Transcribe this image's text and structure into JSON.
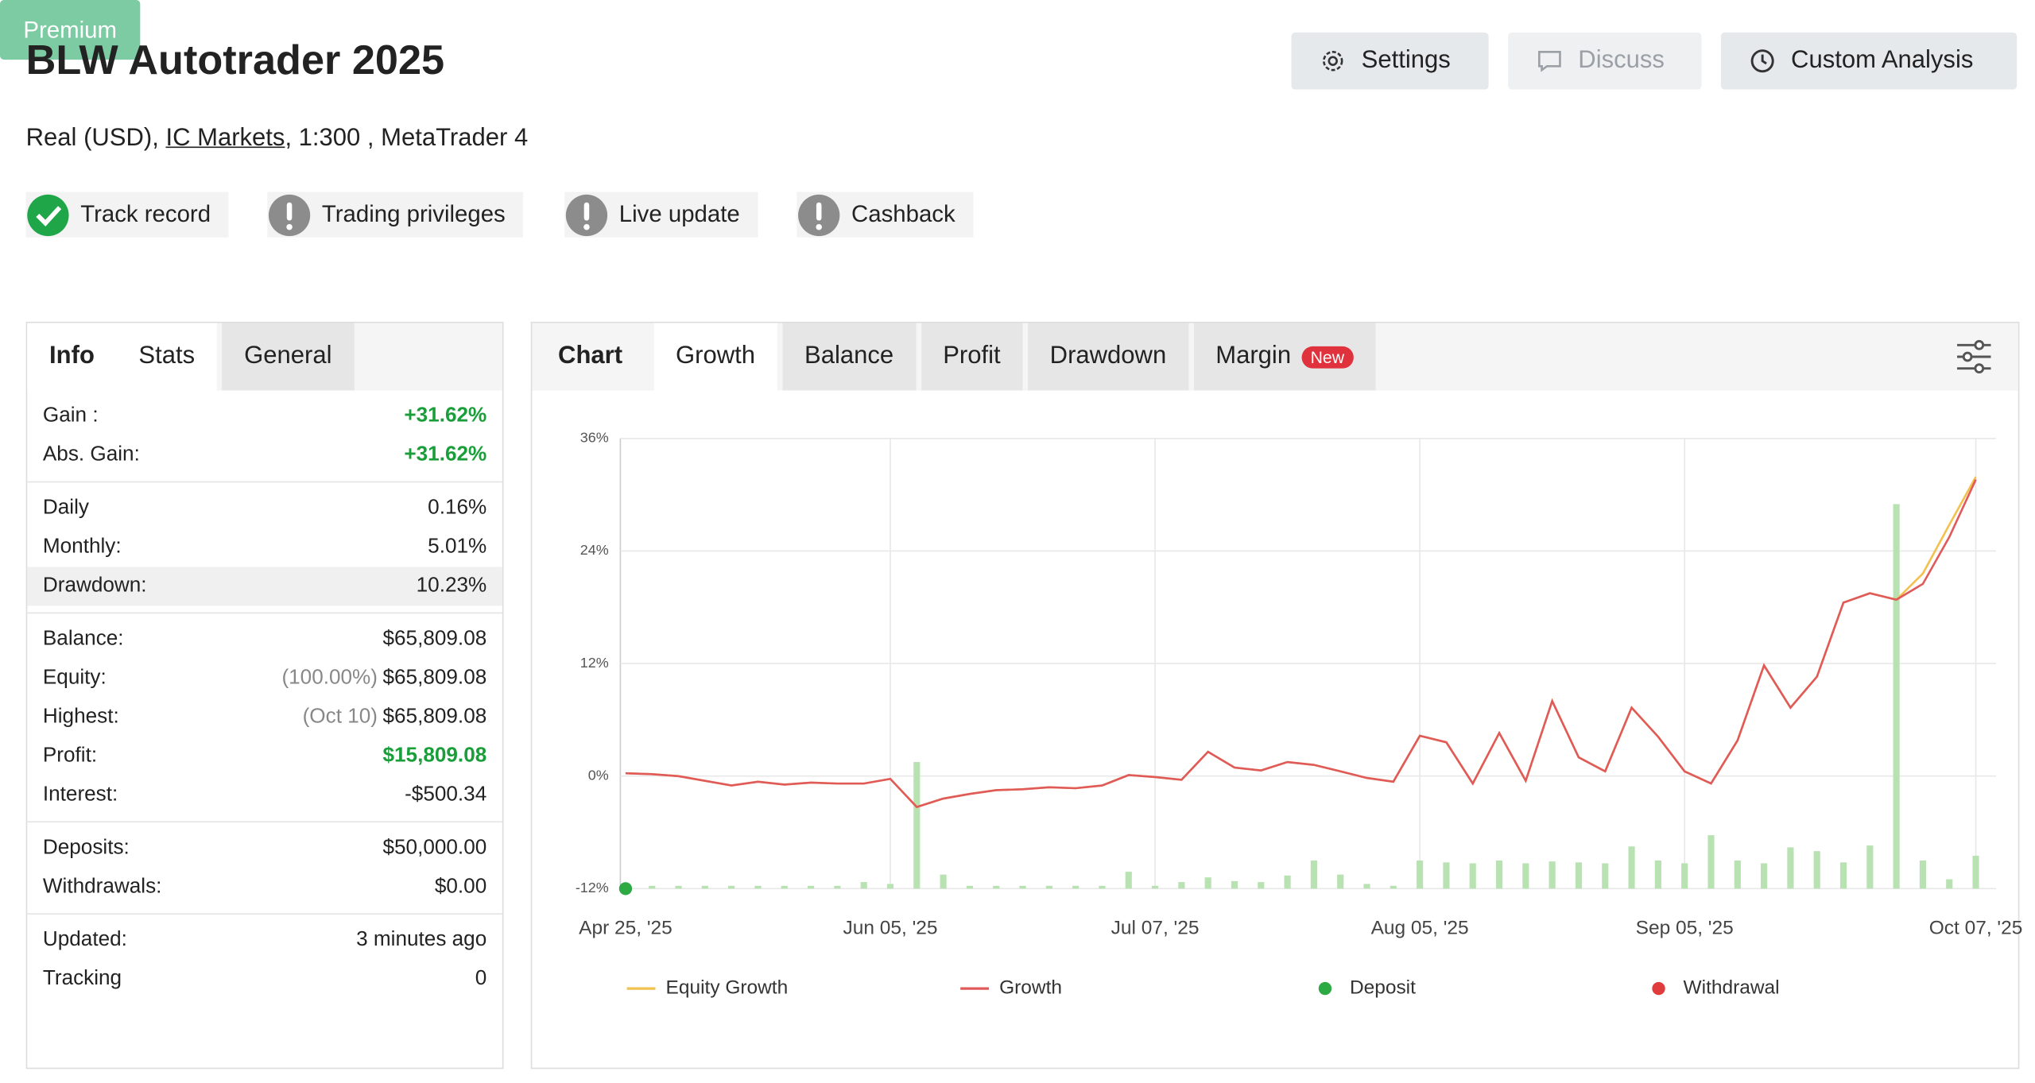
{
  "header": {
    "title": "BLW Autotrader 2025",
    "account_prefix": "Real (USD),",
    "broker": "IC Markets",
    "account_suffix": ", 1:300 , MetaTrader 4"
  },
  "buttons": [
    "Settings",
    "Discuss",
    "Custom Analysis"
  ],
  "badges": [
    "Track record",
    "Trading privileges",
    "Live update",
    "Cashback"
  ],
  "premium": "Premium",
  "info_tabs": [
    "Info",
    "Stats",
    "General"
  ],
  "info": {
    "groups": [
      {
        "rows": [
          {
            "label": "Gain :",
            "value": "+31.62%",
            "color": "#1a9e3a"
          },
          {
            "label": "Abs. Gain:",
            "value": "+31.62%",
            "color": "#1a9e3a"
          }
        ]
      },
      {
        "rows": [
          {
            "label": "Daily",
            "value": "0.16%"
          },
          {
            "label": "Monthly:",
            "value": "5.01%"
          },
          {
            "label": "Drawdown:",
            "value": "10.23%"
          }
        ]
      },
      {
        "rows": [
          {
            "label": "Balance:",
            "value": "$65,809.08"
          },
          {
            "label": "Equity:",
            "note": "(100.00%)",
            "value": "$65,809.08"
          },
          {
            "label": "Highest:",
            "note": "(Oct 10)",
            "value": "$65,809.08"
          },
          {
            "label": "Profit:",
            "value": "$15,809.08",
            "color": "#1a9e3a"
          },
          {
            "label": "Interest:",
            "value": "-$500.34"
          }
        ]
      },
      {
        "rows": [
          {
            "label": "Deposits:",
            "value": "$50,000.00"
          },
          {
            "label": "Withdrawals:",
            "value": "$0.00"
          }
        ]
      },
      {
        "rows": [
          {
            "label": "Updated:",
            "value": "3 minutes ago"
          },
          {
            "label": "Tracking",
            "value": "0"
          }
        ]
      }
    ]
  },
  "chart_tabs": [
    "Chart",
    "Growth",
    "Balance",
    "Profit",
    "Drawdown",
    "Margin"
  ],
  "new_badge": "New",
  "chart_data": {
    "type": "line",
    "categories": [
      "Apr 25, '25",
      null,
      null,
      null,
      null,
      null,
      null,
      null,
      null,
      null,
      "Jun 05, '25",
      null,
      null,
      null,
      null,
      null,
      null,
      null,
      null,
      null,
      "Jul 07, '25",
      null,
      null,
      null,
      null,
      null,
      null,
      null,
      null,
      null,
      "Aug 05, '25",
      null,
      null,
      null,
      null,
      null,
      null,
      null,
      null,
      null,
      "Sep 05, '25",
      null,
      null,
      null,
      null,
      null,
      null,
      null,
      null,
      null,
      null,
      "Oct 07, '25"
    ],
    "ylim": [
      -12,
      36
    ],
    "yticks": [
      {
        "value": -12,
        "label": "-12%"
      },
      {
        "value": 0,
        "label": "0%"
      },
      {
        "value": 12,
        "label": "12%"
      },
      {
        "value": 24,
        "label": "24%"
      },
      {
        "value": 36,
        "label": "36%"
      }
    ],
    "grid": true,
    "series": [
      {
        "name": "Equity Growth",
        "type": "line",
        "color": "#f2c14e",
        "values": [
          0.3,
          0.2,
          0,
          -0.5,
          -1.0,
          -0.6,
          -0.9,
          -0.7,
          -0.8,
          -0.8,
          -0.3,
          -3.3,
          -2.4,
          -1.9,
          -1.5,
          -1.4,
          -1.2,
          -1.3,
          -1.0,
          0.1,
          -0.1,
          -0.4,
          2.6,
          0.9,
          0.6,
          1.5,
          1.2,
          0.5,
          -0.2,
          -0.6,
          4.3,
          3.6,
          -0.8,
          4.6,
          -0.5,
          8.0,
          2.0,
          0.5,
          7.3,
          4.2,
          0.5,
          -0.8,
          3.8,
          11.8,
          7.3,
          10.6,
          18.5,
          19.5,
          18.8,
          21.6,
          26.8,
          31.9
        ]
      },
      {
        "name": "Growth",
        "type": "line",
        "color": "#e05a5a",
        "values": [
          0.3,
          0.2,
          0,
          -0.5,
          -1.0,
          -0.6,
          -0.9,
          -0.7,
          -0.8,
          -0.8,
          -0.3,
          -3.3,
          -2.4,
          -1.9,
          -1.5,
          -1.4,
          -1.2,
          -1.3,
          -1.0,
          0.1,
          -0.1,
          -0.4,
          2.6,
          0.9,
          0.6,
          1.5,
          1.2,
          0.5,
          -0.2,
          -0.6,
          4.3,
          3.6,
          -0.8,
          4.6,
          -0.5,
          8.0,
          2.0,
          0.5,
          7.3,
          4.2,
          0.5,
          -0.8,
          3.8,
          11.8,
          7.3,
          10.6,
          18.5,
          19.5,
          18.8,
          20.5,
          25.5,
          31.62
        ]
      },
      {
        "name": "Deposit",
        "type": "scatter",
        "color": "#2eaa45",
        "values": [
          -12,
          null,
          null,
          null,
          null,
          null,
          null,
          null,
          null,
          null,
          null,
          null,
          null,
          null,
          null,
          null,
          null,
          null,
          null,
          null,
          null,
          null,
          null,
          null,
          null,
          null,
          null,
          null,
          null,
          null,
          null,
          null,
          null,
          null,
          null,
          null,
          null,
          null,
          null,
          null,
          null,
          null,
          null,
          null,
          null,
          null,
          null,
          null,
          null,
          null,
          null,
          null
        ]
      },
      {
        "name": "Withdrawal",
        "type": "scatter",
        "color": "#e03c3c",
        "values": [
          null,
          null,
          null,
          null,
          null,
          null,
          null,
          null,
          null,
          null,
          null,
          null,
          null,
          null,
          null,
          null,
          null,
          null,
          null,
          null,
          null,
          null,
          null,
          null,
          null,
          null,
          null,
          null,
          null,
          null,
          null,
          null,
          null,
          null,
          null,
          null,
          null,
          null,
          null,
          null,
          null,
          null,
          null,
          null,
          null,
          null,
          null,
          null,
          null,
          null,
          null,
          null
        ]
      },
      {
        "type": "bar",
        "color": "#b9e2b3",
        "values": [
          -11.7,
          -11.7,
          -11.7,
          -11.7,
          -11.7,
          -11.7,
          -11.7,
          -11.7,
          -11.7,
          -11.3,
          -11.5,
          1.5,
          -10.5,
          -11.7,
          -11.7,
          -11.7,
          -11.7,
          -11.7,
          -11.7,
          -10.2,
          -11.7,
          -11.3,
          -10.8,
          -11.2,
          -11.3,
          -10.6,
          -9.0,
          -10.5,
          -11.5,
          -11.7,
          -9.0,
          -9.2,
          -9.3,
          -9.0,
          -9.3,
          -9.1,
          -9.2,
          -9.3,
          -7.5,
          -9.0,
          -9.3,
          -6.3,
          -9.0,
          -9.3,
          -7.6,
          -8.0,
          -9.2,
          -7.4,
          29.0,
          -9.0,
          -11.0,
          -8.5
        ]
      }
    ]
  }
}
